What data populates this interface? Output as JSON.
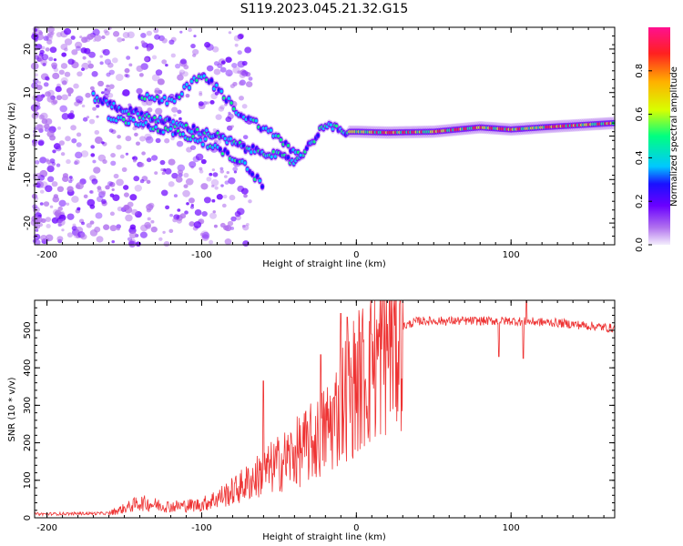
{
  "title": "S119.2023.045.21.32.G15",
  "colors": {
    "snr_line": "#ee3333",
    "colormap": [
      "#e0d0f8",
      "#b070ee",
      "#6a00ff",
      "#1a10ff",
      "#00c8ff",
      "#00ff80",
      "#d8ff00",
      "#ffb000",
      "#ff2020",
      "#ff1090"
    ]
  },
  "chart_data": [
    {
      "type": "heatmap",
      "title": "",
      "xlabel": "Height of straight line (km)",
      "ylabel": "Frequency (Hz)",
      "xlim": [
        -208,
        167
      ],
      "ylim": [
        -25,
        25
      ],
      "x_ticks": [
        -200,
        -100,
        0,
        100
      ],
      "x_tick_labels": [
        "-200",
        "-100",
        "0",
        "100"
      ],
      "y_ticks": [
        20,
        10,
        0,
        -10,
        -20
      ],
      "y_tick_labels": [
        "20",
        "10",
        "0",
        "-10",
        "-20"
      ],
      "colorbar": {
        "label": "Normalized spectral amplitude",
        "range": [
          0,
          1
        ],
        "ticks": [
          0.0,
          0.2,
          0.4,
          0.6,
          0.8
        ],
        "tick_labels": [
          "0.0",
          "0.2",
          "0.4",
          "0.6",
          "0.8"
        ]
      },
      "ridges": [
        {
          "name": "main",
          "points": [
            [
              -170,
              9
            ],
            [
              -150,
              6
            ],
            [
              -130,
              4
            ],
            [
              -110,
              2
            ],
            [
              -90,
              0
            ],
            [
              -70,
              -3
            ],
            [
              -55,
              -4
            ],
            [
              -40,
              -6
            ],
            [
              -30,
              -2
            ],
            [
              -20,
              3
            ],
            [
              -10,
              1
            ],
            [
              0,
              1
            ],
            [
              20,
              0.8
            ],
            [
              50,
              1
            ],
            [
              80,
              2
            ],
            [
              100,
              1.5
            ],
            [
              120,
              2
            ],
            [
              167,
              3
            ]
          ]
        },
        {
          "name": "upper",
          "points": [
            [
              -140,
              9
            ],
            [
              -120,
              8
            ],
            [
              -100,
              14
            ],
            [
              -90,
              11
            ],
            [
              -75,
              5
            ],
            [
              -60,
              2
            ],
            [
              -45,
              -2
            ],
            [
              -35,
              -5
            ]
          ]
        },
        {
          "name": "lower",
          "points": [
            [
              -160,
              4
            ],
            [
              -140,
              3
            ],
            [
              -120,
              1
            ],
            [
              -100,
              -1
            ],
            [
              -85,
              -4
            ],
            [
              -70,
              -7
            ],
            [
              -60,
              -12
            ]
          ]
        }
      ]
    },
    {
      "type": "line",
      "title": "",
      "xlabel": "Height of straight line (km)",
      "ylabel": "SNR (10 * v/v)",
      "xlim": [
        -208,
        167
      ],
      "ylim": [
        0,
        580
      ],
      "x_ticks": [
        -200,
        -100,
        0,
        100
      ],
      "x_tick_labels": [
        "-200",
        "-100",
        "0",
        "100"
      ],
      "y_ticks": [
        0,
        100,
        200,
        300,
        400,
        500
      ],
      "y_tick_labels": [
        "0",
        "100",
        "200",
        "300",
        "400",
        "500"
      ],
      "envelope": [
        [
          -208,
          10
        ],
        [
          -160,
          12
        ],
        [
          -150,
          25
        ],
        [
          -140,
          40
        ],
        [
          -120,
          30
        ],
        [
          -100,
          35
        ],
        [
          -80,
          70
        ],
        [
          -60,
          120
        ],
        [
          -40,
          170
        ],
        [
          -25,
          210
        ],
        [
          -15,
          260
        ],
        [
          -8,
          320
        ],
        [
          0,
          360
        ],
        [
          10,
          400
        ],
        [
          20,
          470
        ],
        [
          30,
          510
        ],
        [
          40,
          525
        ],
        [
          60,
          525
        ],
        [
          100,
          525
        ],
        [
          130,
          520
        ],
        [
          167,
          505
        ]
      ],
      "spikes": [
        [
          -60,
          365
        ],
        [
          -23,
          435
        ],
        [
          -10,
          545
        ],
        [
          -6,
          535
        ],
        [
          -3,
          375
        ],
        [
          10,
          490
        ],
        [
          92,
          430
        ],
        [
          108,
          425
        ],
        [
          110,
          580
        ]
      ]
    }
  ]
}
